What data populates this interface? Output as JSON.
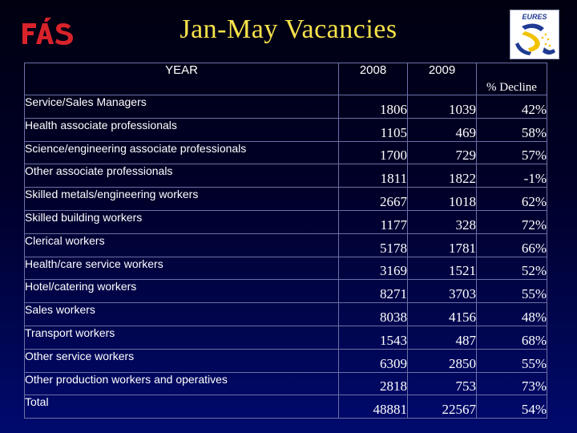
{
  "header": {
    "title": "Jan-May Vacancies",
    "logo_left_text": "FÁS",
    "logo_right_text": "EURES"
  },
  "table": {
    "headers": {
      "category": "YEAR",
      "year_2008": "2008",
      "year_2009": "2009",
      "decline": "% Decline"
    },
    "rows": [
      {
        "category": "Service/Sales Managers",
        "v2008": "1806",
        "v2009": "1039",
        "decline": "42%"
      },
      {
        "category": "Health associate professionals",
        "v2008": "1105",
        "v2009": "469",
        "decline": "58%"
      },
      {
        "category": "Science/engineering associate professionals",
        "v2008": "1700",
        "v2009": "729",
        "decline": "57%"
      },
      {
        "category": "Other associate professionals",
        "v2008": "1811",
        "v2009": "1822",
        "decline": "-1%"
      },
      {
        "category": "Skilled metals/engineering workers",
        "v2008": "2667",
        "v2009": "1018",
        "decline": "62%"
      },
      {
        "category": "Skilled building workers",
        "v2008": "1177",
        "v2009": "328",
        "decline": "72%"
      },
      {
        "category": "Clerical workers",
        "v2008": "5178",
        "v2009": "1781",
        "decline": "66%"
      },
      {
        "category": "Health/care service workers",
        "v2008": "3169",
        "v2009": "1521",
        "decline": "52%"
      },
      {
        "category": "Hotel/catering workers",
        "v2008": "8271",
        "v2009": "3703",
        "decline": "55%"
      },
      {
        "category": "Sales workers",
        "v2008": "8038",
        "v2009": "4156",
        "decline": "48%"
      },
      {
        "category": "Transport workers",
        "v2008": "1543",
        "v2009": "487",
        "decline": "68%"
      },
      {
        "category": "Other service workers",
        "v2008": "6309",
        "v2009": "2850",
        "decline": "55%"
      },
      {
        "category": "Other production workers and operatives",
        "v2008": "2818",
        "v2009": "753",
        "decline": "73%"
      },
      {
        "category": "Total",
        "v2008": "48881",
        "v2009": "22567",
        "decline": "54%"
      }
    ]
  },
  "colors": {
    "title": "#f7e24a",
    "logo_red": "#d8232a",
    "eures_blue": "#1f3a93",
    "eures_yellow": "#f2c200",
    "table_text": "#ffffff",
    "grid": "#6c70a6"
  }
}
